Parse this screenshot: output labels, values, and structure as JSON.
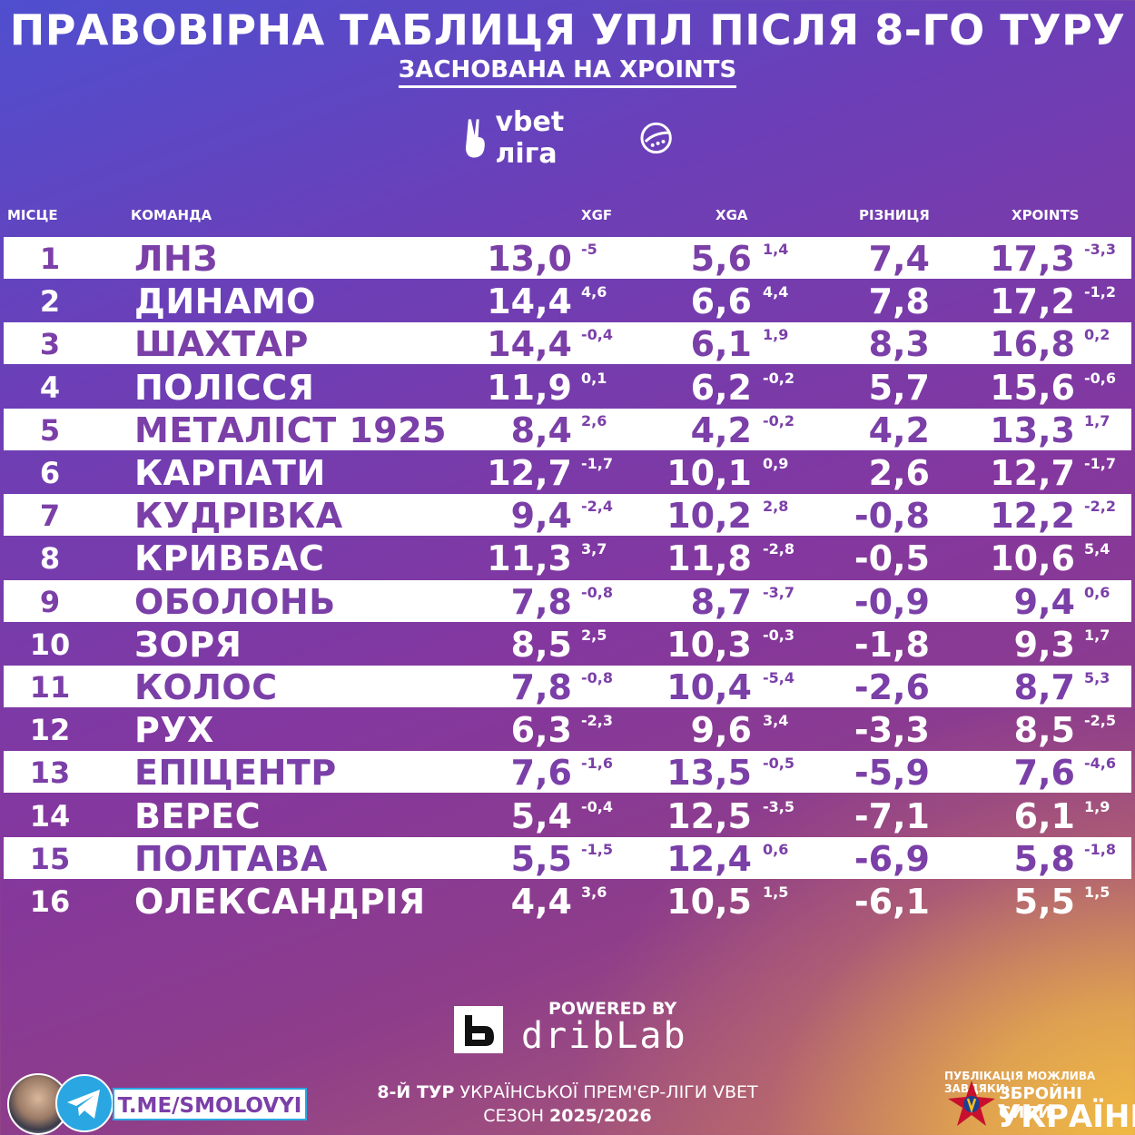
{
  "header": {
    "title": "ПРАВОВІРНА ТАБЛИЦЯ УПЛ ПІСЛЯ 8-ГО ТУРУ",
    "subtitle": "ЗАСНОВАНА НА XPOINTS",
    "league_name": "vbet ліга"
  },
  "columns": {
    "place": "МІСЦЕ",
    "team": "КОМАНДА",
    "xgf": "XGF",
    "xga": "XGA",
    "diff": "РІЗНИЦЯ",
    "xpoints": "XPOINTS"
  },
  "rows": [
    {
      "place": "1",
      "team": "ЛНЗ",
      "xgf": "13,0",
      "xgf_d": "-5",
      "xga": "5,6",
      "xga_d": "1,4",
      "diff": "7,4",
      "xp": "17,3",
      "xp_d": "-3,3"
    },
    {
      "place": "2",
      "team": "ДИНАМО",
      "xgf": "14,4",
      "xgf_d": "4,6",
      "xga": "6,6",
      "xga_d": "4,4",
      "diff": "7,8",
      "xp": "17,2",
      "xp_d": "-1,2"
    },
    {
      "place": "3",
      "team": "ШАХТАР",
      "xgf": "14,4",
      "xgf_d": "-0,4",
      "xga": "6,1",
      "xga_d": "1,9",
      "diff": "8,3",
      "xp": "16,8",
      "xp_d": "0,2"
    },
    {
      "place": "4",
      "team": "ПОЛІССЯ",
      "xgf": "11,9",
      "xgf_d": "0,1",
      "xga": "6,2",
      "xga_d": "-0,2",
      "diff": "5,7",
      "xp": "15,6",
      "xp_d": "-0,6"
    },
    {
      "place": "5",
      "team": "МЕТАЛІСТ 1925",
      "xgf": "8,4",
      "xgf_d": "2,6",
      "xga": "4,2",
      "xga_d": "-0,2",
      "diff": "4,2",
      "xp": "13,3",
      "xp_d": "1,7"
    },
    {
      "place": "6",
      "team": "КАРПАТИ",
      "xgf": "12,7",
      "xgf_d": "-1,7",
      "xga": "10,1",
      "xga_d": "0,9",
      "diff": "2,6",
      "xp": "12,7",
      "xp_d": "-1,7"
    },
    {
      "place": "7",
      "team": "КУДРІВКА",
      "xgf": "9,4",
      "xgf_d": "-2,4",
      "xga": "10,2",
      "xga_d": "2,8",
      "diff": "-0,8",
      "xp": "12,2",
      "xp_d": "-2,2"
    },
    {
      "place": "8",
      "team": "КРИВБАС",
      "xgf": "11,3",
      "xgf_d": "3,7",
      "xga": "11,8",
      "xga_d": "-2,8",
      "diff": "-0,5",
      "xp": "10,6",
      "xp_d": "5,4"
    },
    {
      "place": "9",
      "team": "ОБОЛОНЬ",
      "xgf": "7,8",
      "xgf_d": "-0,8",
      "xga": "8,7",
      "xga_d": "-3,7",
      "diff": "-0,9",
      "xp": "9,4",
      "xp_d": "0,6"
    },
    {
      "place": "10",
      "team": "ЗОРЯ",
      "xgf": "8,5",
      "xgf_d": "2,5",
      "xga": "10,3",
      "xga_d": "-0,3",
      "diff": "-1,8",
      "xp": "9,3",
      "xp_d": "1,7"
    },
    {
      "place": "11",
      "team": "КОЛОС",
      "xgf": "7,8",
      "xgf_d": "-0,8",
      "xga": "10,4",
      "xga_d": "-5,4",
      "diff": "-2,6",
      "xp": "8,7",
      "xp_d": "5,3"
    },
    {
      "place": "12",
      "team": "РУХ",
      "xgf": "6,3",
      "xgf_d": "-2,3",
      "xga": "9,6",
      "xga_d": "3,4",
      "diff": "-3,3",
      "xp": "8,5",
      "xp_d": "-2,5"
    },
    {
      "place": "13",
      "team": "ЕПІЦЕНТР",
      "xgf": "7,6",
      "xgf_d": "-1,6",
      "xga": "13,5",
      "xga_d": "-0,5",
      "diff": "-5,9",
      "xp": "7,6",
      "xp_d": "-4,6"
    },
    {
      "place": "14",
      "team": "ВЕРЕС",
      "xgf": "5,4",
      "xgf_d": "-0,4",
      "xga": "12,5",
      "xga_d": "-3,5",
      "diff": "-7,1",
      "xp": "6,1",
      "xp_d": "1,9"
    },
    {
      "place": "15",
      "team": "ПОЛТАВА",
      "xgf": "5,5",
      "xgf_d": "-1,5",
      "xga": "12,4",
      "xga_d": "0,6",
      "diff": "-6,9",
      "xp": "5,8",
      "xp_d": "-1,8"
    },
    {
      "place": "16",
      "team": "ОЛЕКСАНДРІЯ",
      "xgf": "4,4",
      "xgf_d": "3,6",
      "xga": "10,5",
      "xga_d": "1,5",
      "diff": "-6,1",
      "xp": "5,5",
      "xp_d": "1,5"
    }
  ],
  "footer": {
    "powered_by": "POWERED BY",
    "brand": "dribLab",
    "round_bold": "8-Й ТУР",
    "round_text": " УКРАЇНСЬКОЇ ПРЕМ'ЄР-ЛІГИ VBET",
    "season_label": "СЕЗОН ",
    "season_value": "2025/2026",
    "telegram_handle": "T.ME/SMOLOVYI",
    "zsu_note": "ПУБЛІКАЦІЯ МОЖЛИВА ЗАВДЯКИ:",
    "zsu_line1": "ЗБРОЙНІ СИЛИ",
    "zsu_line2": "УКРАЇНИ"
  },
  "colors": {
    "row_text_on_white": "#7b3fa8",
    "telegram": "#2aa7e2",
    "gradient_start": "#4f4fcf",
    "gradient_end": "#f0b944"
  }
}
